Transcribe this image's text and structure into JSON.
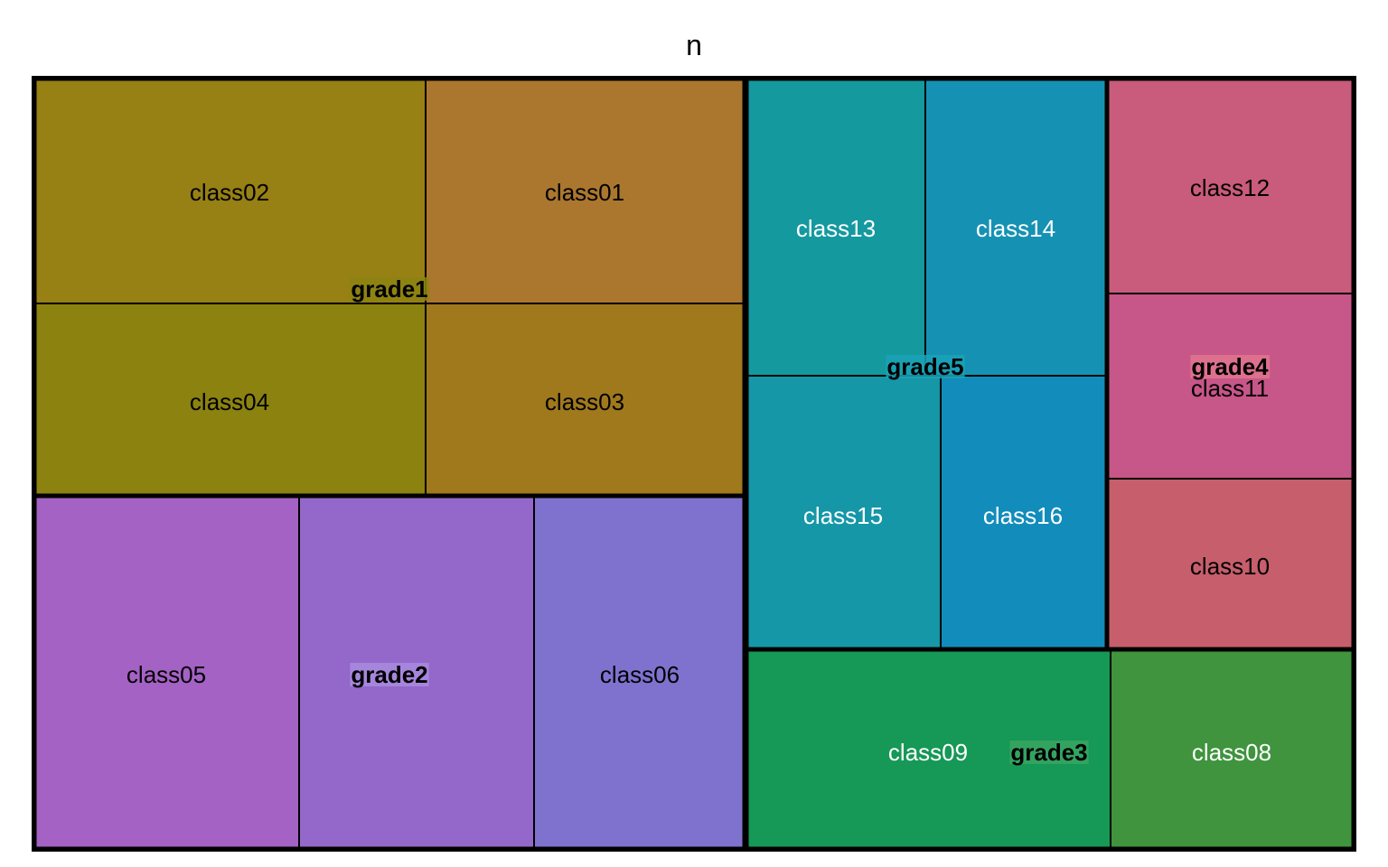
{
  "chart_data": {
    "type": "treemap",
    "title": "n",
    "size_variable": "n",
    "groups": [
      {
        "name": "grade1",
        "color": "#8C8411",
        "children": [
          {
            "name": "class02",
            "color": "#978014",
            "label_color": "#000000"
          },
          {
            "name": "class01",
            "color": "#AB772E",
            "label_color": "#000000"
          },
          {
            "name": "class04",
            "color": "#8B8210",
            "label_color": "#000000"
          },
          {
            "name": "class03",
            "color": "#A0791D",
            "label_color": "#000000"
          }
        ]
      },
      {
        "name": "grade2",
        "color": "#A98CDF",
        "children": [
          {
            "name": "class05",
            "color": "#A462C4",
            "label_color": "#000000"
          },
          {
            "name": "class06",
            "color": "#7F72CF",
            "label_color": "#000000"
          },
          {
            "name": "",
            "color": "#9368CA",
            "label_color": "#000000"
          }
        ]
      },
      {
        "name": "grade5",
        "color": "#1AA2B6",
        "children": [
          {
            "name": "class13",
            "color": "#14999F",
            "label_color": "#FFFFFF"
          },
          {
            "name": "class14",
            "color": "#1592B3",
            "label_color": "#FFFFFF"
          },
          {
            "name": "class15",
            "color": "#1597A8",
            "label_color": "#FFFFFF"
          },
          {
            "name": "class16",
            "color": "#128CBB",
            "label_color": "#FFFFFF"
          }
        ]
      },
      {
        "name": "grade4",
        "color": "#E0768E",
        "children": [
          {
            "name": "class12",
            "color": "#C95B7C",
            "label_color": "#000000"
          },
          {
            "name": "class11",
            "color": "#C75689",
            "label_color": "#000000"
          },
          {
            "name": "class10",
            "color": "#C65E6C",
            "label_color": "#000000"
          }
        ]
      },
      {
        "name": "grade3",
        "color": "#3AA562",
        "children": [
          {
            "name": "class09",
            "color": "#169856",
            "label_color": "#FFFFFF"
          },
          {
            "name": "class08",
            "color": "#3F943D",
            "label_color": "#FFFFFF"
          }
        ]
      }
    ]
  }
}
